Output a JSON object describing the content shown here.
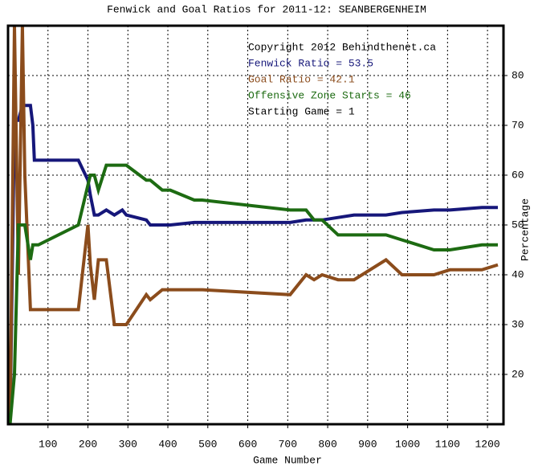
{
  "chart_data": {
    "type": "line",
    "title": "Fenwick and Goal Ratios for 2011-12: SEANBERGENHEIM",
    "x_label": "Game Number",
    "y_label": "Percentage",
    "annotations": [
      {
        "text": "Copyright 2012 Behindthenet.ca",
        "color": "#000000"
      },
      {
        "text": "Fenwick Ratio = 53.5",
        "color": "#16177a"
      },
      {
        "text": "Goal Ratio = 42.1",
        "color": "#8b4c1c"
      },
      {
        "text": "Offensive Zone Starts = 46",
        "color": "#1d6b12"
      },
      {
        "text": "Starting Game = 1",
        "color": "#000000"
      }
    ],
    "x": [
      5,
      16,
      26,
      36,
      42,
      56,
      62,
      66,
      76,
      176,
      200,
      206,
      216,
      226,
      246,
      266,
      286,
      296,
      346,
      356,
      386,
      406,
      466,
      486,
      706,
      746,
      766,
      786,
      826,
      866,
      946,
      986,
      1066,
      1106,
      1186,
      1226
    ],
    "series": [
      {
        "name": "Fenwick Ratio",
        "color": "#16177a",
        "values": [
          10,
          71,
          71,
          74,
          74,
          74,
          70,
          63,
          63,
          63,
          59,
          56,
          52,
          52,
          53,
          52,
          53,
          52,
          51,
          50,
          50,
          50,
          50.5,
          50.5,
          50.5,
          51,
          51,
          51,
          51.5,
          52,
          52,
          52.5,
          53,
          53,
          53.5,
          53.5
        ]
      },
      {
        "name": "Goal Ratio",
        "color": "#8b4c1c",
        "values": [
          10,
          90,
          40,
          90,
          60,
          33,
          33,
          33,
          33,
          33,
          50,
          42,
          35,
          43,
          43,
          30,
          30,
          30,
          36,
          35,
          37,
          37,
          37,
          37,
          36,
          40,
          39,
          40,
          39,
          39,
          43,
          40,
          40,
          41,
          41,
          42
        ]
      },
      {
        "name": "Offensive Zone Starts",
        "color": "#1d6b12",
        "values": [
          10,
          20,
          50,
          50,
          50,
          43,
          46,
          46,
          46,
          50,
          58,
          60,
          60,
          57,
          62,
          62,
          62,
          62,
          59,
          59,
          57,
          57,
          55,
          55,
          53,
          53,
          51,
          51,
          48,
          48,
          48,
          47,
          45,
          45,
          46,
          46
        ]
      }
    ],
    "xlim": [
      0,
      1240
    ],
    "ylim": [
      10,
      90
    ],
    "xticks": [
      100,
      200,
      300,
      400,
      500,
      600,
      700,
      800,
      900,
      1000,
      1100,
      1200
    ],
    "yticks": [
      20,
      30,
      40,
      50,
      60,
      70,
      80
    ],
    "grid": true
  }
}
